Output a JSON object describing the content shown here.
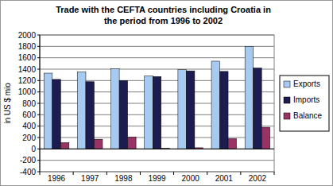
{
  "chart_data": {
    "type": "bar",
    "title": "Trade with the CEFTA countries including Croatia in the period from 1996 to 2002",
    "y_label": "in US $ mio",
    "categories": [
      "1996",
      "1997",
      "1998",
      "1999",
      "2000",
      "2001",
      "2002"
    ],
    "series": [
      {
        "name": "Exports",
        "color": "#a6caf0",
        "values": [
          1330,
          1350,
          1410,
          1280,
          1390,
          1540,
          1800
        ]
      },
      {
        "name": "Imports",
        "color": "#1c1c50",
        "values": [
          1220,
          1180,
          1200,
          1270,
          1370,
          1360,
          1420
        ]
      },
      {
        "name": "Balance",
        "color": "#993366",
        "values": [
          110,
          170,
          210,
          10,
          20,
          180,
          380
        ]
      }
    ],
    "ylim": [
      -400,
      2000
    ],
    "yticks": [
      -400,
      -200,
      0,
      200,
      400,
      600,
      800,
      1000,
      1200,
      1400,
      1600,
      1800,
      2000
    ],
    "grid": true,
    "legend": "right"
  }
}
